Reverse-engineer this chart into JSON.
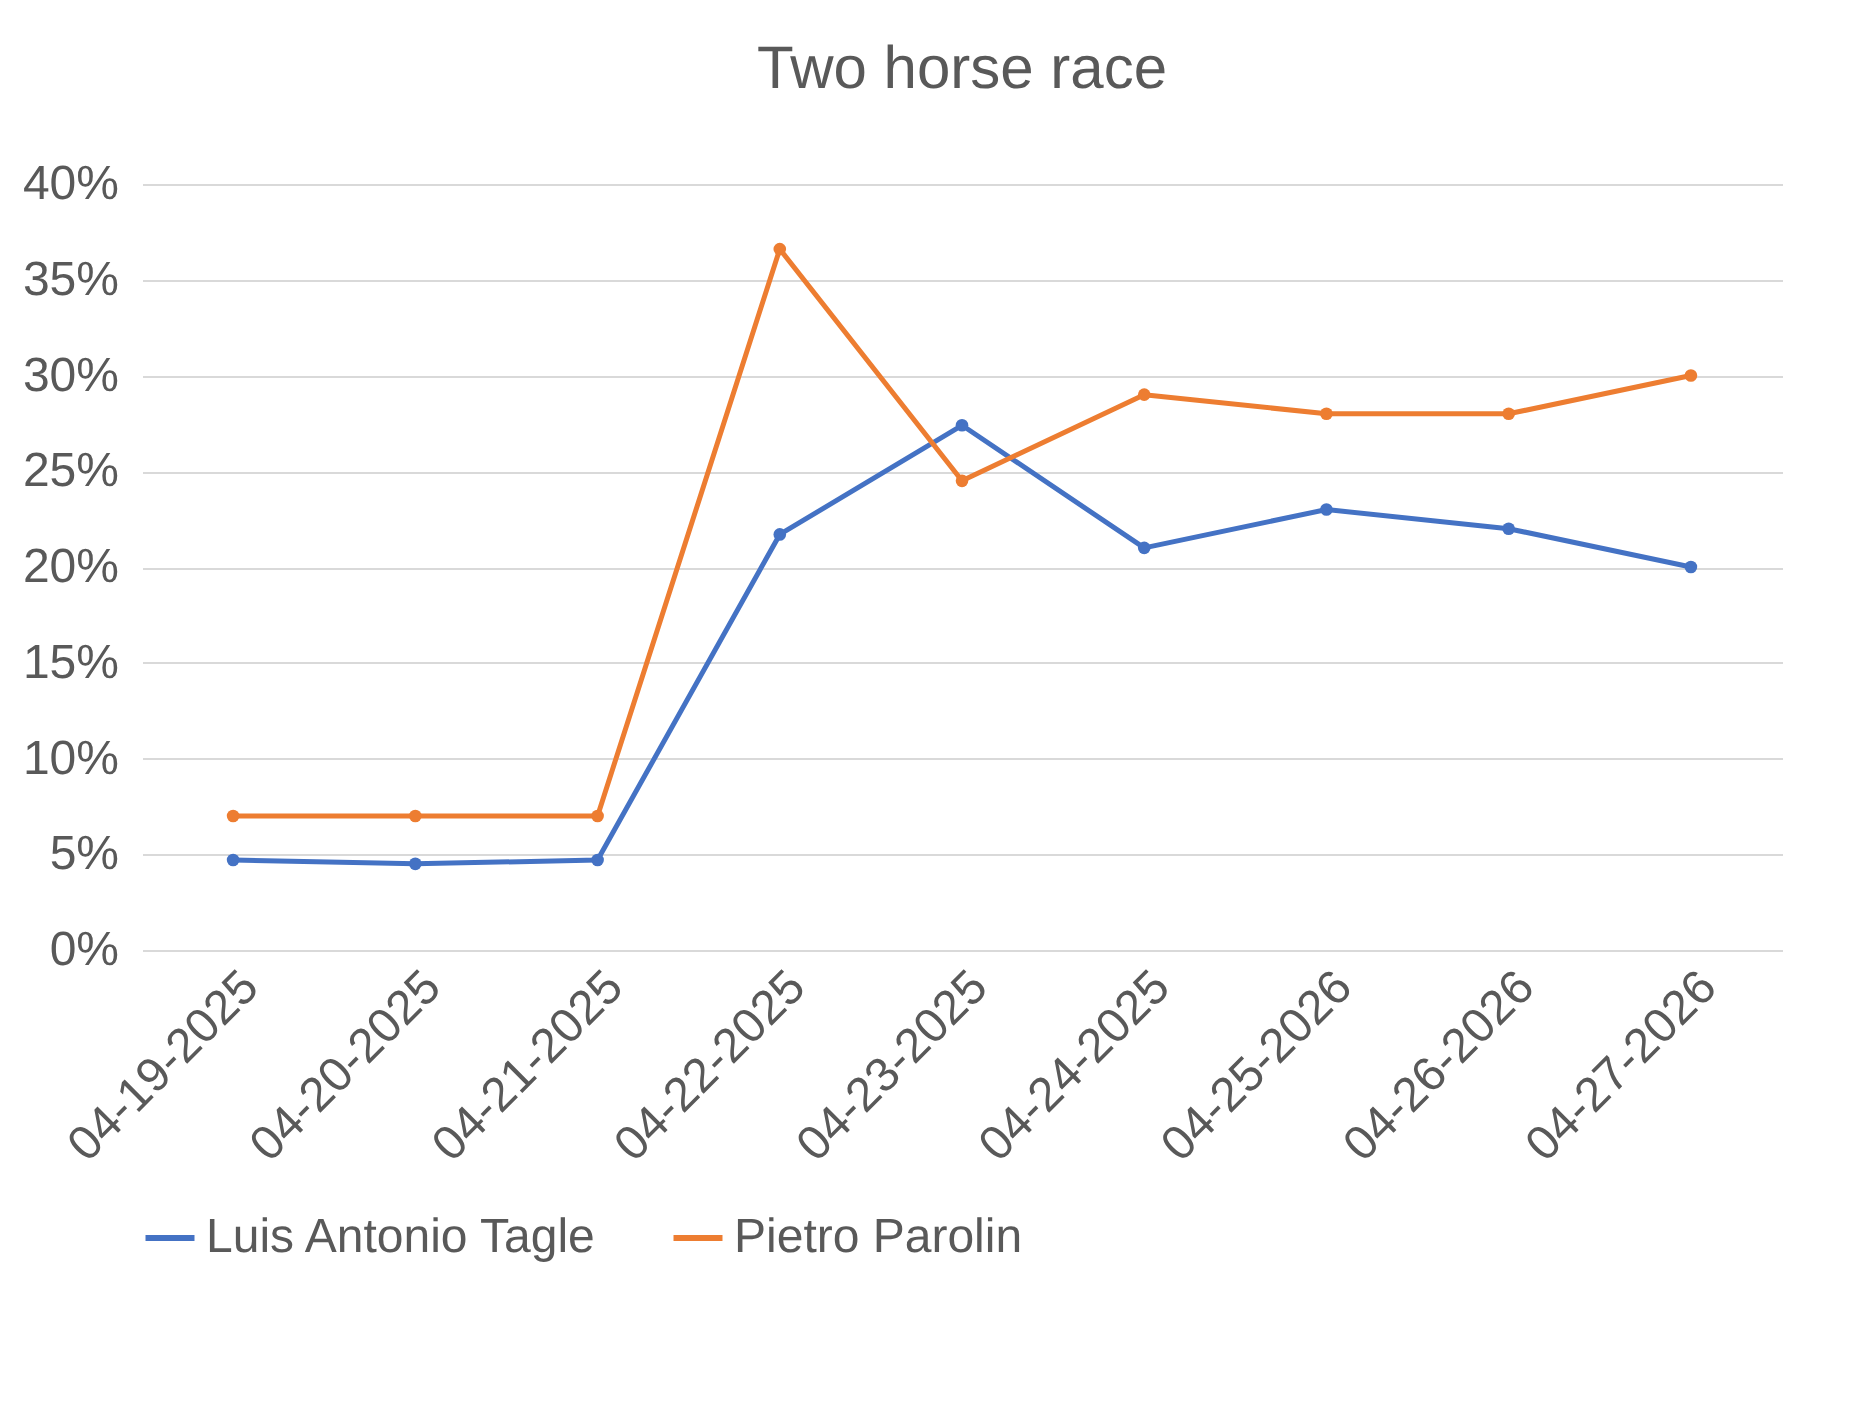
{
  "chart_data": {
    "type": "line",
    "title": "Two horse race",
    "categories": [
      "04-19-2025",
      "04-20-2025",
      "04-21-2025",
      "04-22-2025",
      "04-23-2025",
      "04-24-2025",
      "04-25-2026",
      "04-26-2026",
      "04-27-2026"
    ],
    "series": [
      {
        "name": "Luis Antonio Tagle",
        "color": "#4472c4",
        "values": [
          4.7,
          4.5,
          4.7,
          21.7,
          27.4,
          21,
          23,
          22,
          20
        ]
      },
      {
        "name": "Pietro Parolin",
        "color": "#ed7d31",
        "values": [
          7,
          7,
          7,
          36.6,
          24.5,
          29,
          28,
          28,
          30
        ]
      }
    ],
    "ylim": [
      0,
      40
    ],
    "yticks": [
      {
        "value": 0,
        "label": "0%"
      },
      {
        "value": 5,
        "label": "5%"
      },
      {
        "value": 10,
        "label": "10%"
      },
      {
        "value": 15,
        "label": "15%"
      },
      {
        "value": 20,
        "label": "20%"
      },
      {
        "value": 25,
        "label": "25%"
      },
      {
        "value": 30,
        "label": "30%"
      },
      {
        "value": 35,
        "label": "35%"
      },
      {
        "value": 40,
        "label": "40%"
      }
    ],
    "grid": "y",
    "legend": "bottom",
    "marker": "circle",
    "line_style": "solid"
  }
}
